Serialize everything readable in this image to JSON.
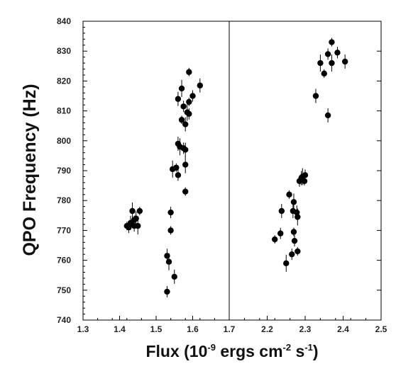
{
  "chart_data": {
    "type": "scatter",
    "title": "",
    "ylabel": "QPO Frequency (Hz)",
    "xlabel": {
      "prefix": "Flux (10",
      "exp1": "-9",
      "middle": " ergs cm",
      "exp2": "-2",
      "middle2": " s",
      "exp3": "-1",
      "suffix": ")"
    },
    "ylim": [
      740,
      840
    ],
    "yticks": [
      "740",
      "750",
      "760",
      "770",
      "780",
      "790",
      "800",
      "810",
      "820",
      "830",
      "840"
    ],
    "grid": false,
    "legend": "none",
    "marker_color": "#000000",
    "panels": [
      {
        "xlim": [
          1.3,
          1.7
        ],
        "xticks": [
          "1.3",
          "1.4",
          "1.5",
          "1.6",
          "1.7"
        ],
        "points": [
          {
            "x": 1.42,
            "y": 771.5
          },
          {
            "x": 1.425,
            "y": 771.0
          },
          {
            "x": 1.43,
            "y": 772.5
          },
          {
            "x": 1.435,
            "y": 776.5
          },
          {
            "x": 1.44,
            "y": 773.5
          },
          {
            "x": 1.44,
            "y": 771.5
          },
          {
            "x": 1.445,
            "y": 774.0
          },
          {
            "x": 1.45,
            "y": 771.5
          },
          {
            "x": 1.455,
            "y": 776.5
          },
          {
            "x": 1.53,
            "y": 749.5
          },
          {
            "x": 1.53,
            "y": 761.5
          },
          {
            "x": 1.535,
            "y": 759.5
          },
          {
            "x": 1.54,
            "y": 770.0
          },
          {
            "x": 1.54,
            "y": 776.0
          },
          {
            "x": 1.55,
            "y": 754.5
          },
          {
            "x": 1.545,
            "y": 790.5
          },
          {
            "x": 1.555,
            "y": 791.0
          },
          {
            "x": 1.56,
            "y": 788.5
          },
          {
            "x": 1.56,
            "y": 799.0
          },
          {
            "x": 1.565,
            "y": 798.0
          },
          {
            "x": 1.57,
            "y": 807.0
          },
          {
            "x": 1.575,
            "y": 797.5
          },
          {
            "x": 1.58,
            "y": 797.0
          },
          {
            "x": 1.58,
            "y": 792.0
          },
          {
            "x": 1.58,
            "y": 783.0
          },
          {
            "x": 1.575,
            "y": 811.5
          },
          {
            "x": 1.58,
            "y": 805.5
          },
          {
            "x": 1.585,
            "y": 809.5
          },
          {
            "x": 1.59,
            "y": 813.0
          },
          {
            "x": 1.59,
            "y": 809.0
          },
          {
            "x": 1.56,
            "y": 814.0
          },
          {
            "x": 1.57,
            "y": 817.5
          },
          {
            "x": 1.59,
            "y": 823.0
          },
          {
            "x": 1.6,
            "y": 815.0
          },
          {
            "x": 1.62,
            "y": 818.5
          }
        ]
      },
      {
        "xlim": [
          2.1,
          2.5
        ],
        "xticks": [
          "2.2",
          "2.3",
          "2.4",
          "2.5"
        ],
        "points": [
          {
            "x": 2.22,
            "y": 767.0
          },
          {
            "x": 2.235,
            "y": 769.0
          },
          {
            "x": 2.238,
            "y": 776.5
          },
          {
            "x": 2.25,
            "y": 759.0
          },
          {
            "x": 2.258,
            "y": 782.0
          },
          {
            "x": 2.265,
            "y": 762.0
          },
          {
            "x": 2.268,
            "y": 776.5
          },
          {
            "x": 2.27,
            "y": 779.5
          },
          {
            "x": 2.27,
            "y": 769.5
          },
          {
            "x": 2.272,
            "y": 766.5
          },
          {
            "x": 2.278,
            "y": 776.0
          },
          {
            "x": 2.28,
            "y": 774.5
          },
          {
            "x": 2.28,
            "y": 763.0
          },
          {
            "x": 2.285,
            "y": 786.5
          },
          {
            "x": 2.29,
            "y": 787.5
          },
          {
            "x": 2.293,
            "y": 788.0
          },
          {
            "x": 2.298,
            "y": 786.5
          },
          {
            "x": 2.3,
            "y": 788.5
          },
          {
            "x": 2.328,
            "y": 815.0
          },
          {
            "x": 2.34,
            "y": 826.0
          },
          {
            "x": 2.35,
            "y": 822.5
          },
          {
            "x": 2.36,
            "y": 829.0
          },
          {
            "x": 2.36,
            "y": 808.5
          },
          {
            "x": 2.37,
            "y": 826.0
          },
          {
            "x": 2.37,
            "y": 833.0
          },
          {
            "x": 2.385,
            "y": 829.5
          },
          {
            "x": 2.405,
            "y": 826.5
          }
        ]
      }
    ]
  }
}
